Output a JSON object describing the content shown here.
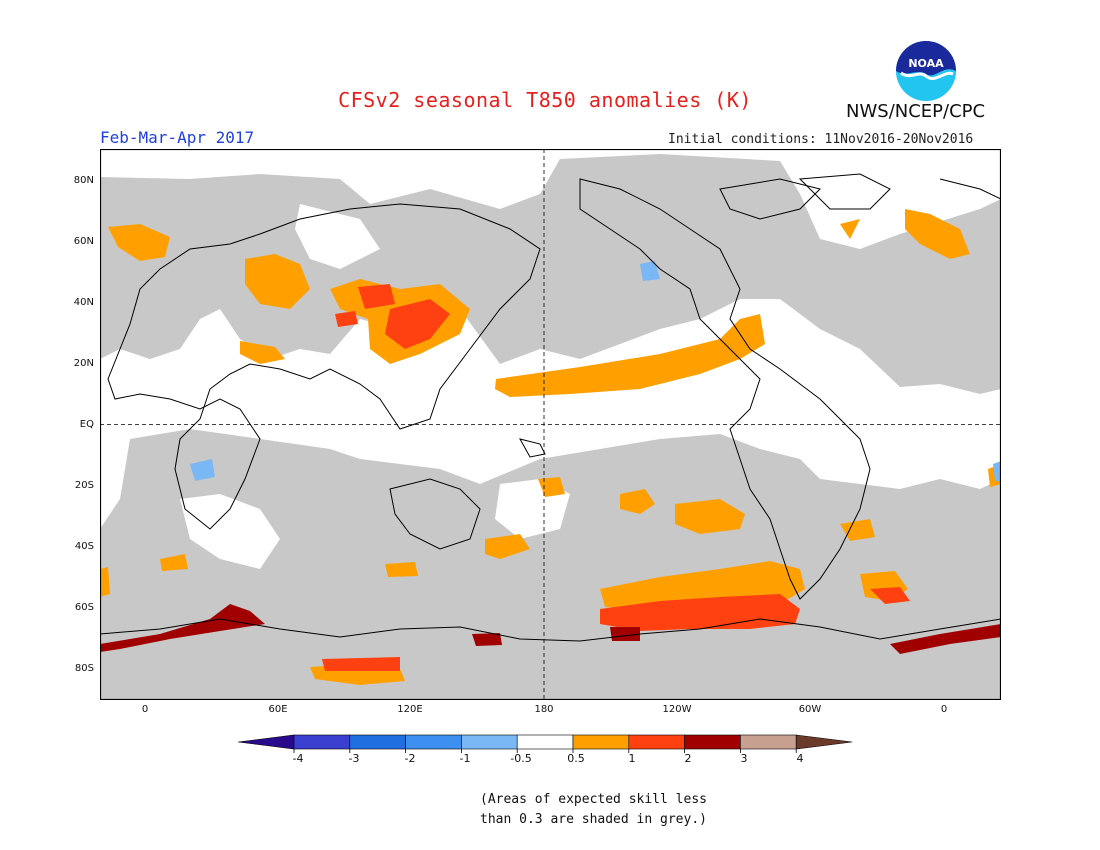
{
  "header": {
    "title": "CFSv2 seasonal T850 anomalies (K)",
    "agency": "NWS/NCEP/CPC",
    "logo_text": "NOAA",
    "period": "Feb-Mar-Apr 2017",
    "initial_conditions": "Initial conditions: 11Nov2016-20Nov2016"
  },
  "map": {
    "lat_labels": [
      "80N",
      "60N",
      "40N",
      "20N",
      "EQ",
      "20S",
      "40S",
      "60S",
      "80S"
    ],
    "lon_labels": [
      "0",
      "60E",
      "120E",
      "180",
      "120W",
      "60W",
      "0"
    ],
    "grey_meaning": "low skill"
  },
  "colorbar": {
    "labels": [
      "-4",
      "-3",
      "-2",
      "-1",
      "-0.5",
      "0.5",
      "1",
      "2",
      "3",
      "4"
    ],
    "colors": [
      "#2a0a8c",
      "#3b3fd0",
      "#1f6fe0",
      "#3d8ff0",
      "#7ab8f5",
      "#ffffff",
      "#ffa000",
      "#ff4010",
      "#a00000",
      "#c8a090",
      "#6b3a2a"
    ]
  },
  "note": {
    "line1": "(Areas of expected skill less",
    "line2": "than 0.3 are shaded in grey.)"
  },
  "colors": {
    "title": "#e8201c",
    "period": "#2040e0",
    "grey_mask": "#c8c8c8",
    "anom_05_1": "#ffa000",
    "anom_1_2": "#ff4010",
    "anom_2_3": "#a00000",
    "anom_neg": "#7ab8f5"
  }
}
